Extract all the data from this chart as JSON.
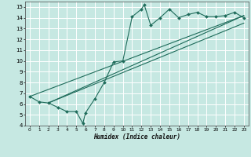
{
  "title": "",
  "xlabel": "Humidex (Indice chaleur)",
  "xlim": [
    -0.5,
    23.5
  ],
  "ylim": [
    4,
    15.5
  ],
  "yticks": [
    4,
    5,
    6,
    7,
    8,
    9,
    10,
    11,
    12,
    13,
    14,
    15
  ],
  "xticks": [
    0,
    1,
    2,
    3,
    4,
    5,
    6,
    7,
    8,
    9,
    10,
    11,
    12,
    13,
    14,
    15,
    16,
    17,
    18,
    19,
    20,
    21,
    22,
    23
  ],
  "bg_color": "#c6e8e2",
  "grid_color": "#ffffff",
  "line_color": "#1e6b5a",
  "main_line_x": [
    0,
    1,
    2,
    3,
    4,
    5,
    5.7,
    6,
    7,
    8,
    9,
    10,
    11,
    12,
    12.3,
    13,
    14,
    15,
    16,
    17,
    18,
    19,
    20,
    21,
    22,
    23
  ],
  "main_line_y": [
    6.7,
    6.2,
    6.1,
    5.7,
    5.3,
    5.3,
    4.2,
    5.2,
    6.5,
    8.0,
    9.9,
    10.0,
    14.1,
    14.8,
    15.2,
    13.3,
    14.0,
    14.8,
    14.0,
    14.3,
    14.5,
    14.1,
    14.1,
    14.2,
    14.5,
    14.0
  ],
  "diag_line1_x": [
    2,
    23
  ],
  "diag_line1_y": [
    6.1,
    14.2
  ],
  "diag_line2_x": [
    2,
    23
  ],
  "diag_line2_y": [
    6.1,
    13.5
  ],
  "diag_line3_x": [
    0,
    23
  ],
  "diag_line3_y": [
    6.7,
    14.2
  ]
}
